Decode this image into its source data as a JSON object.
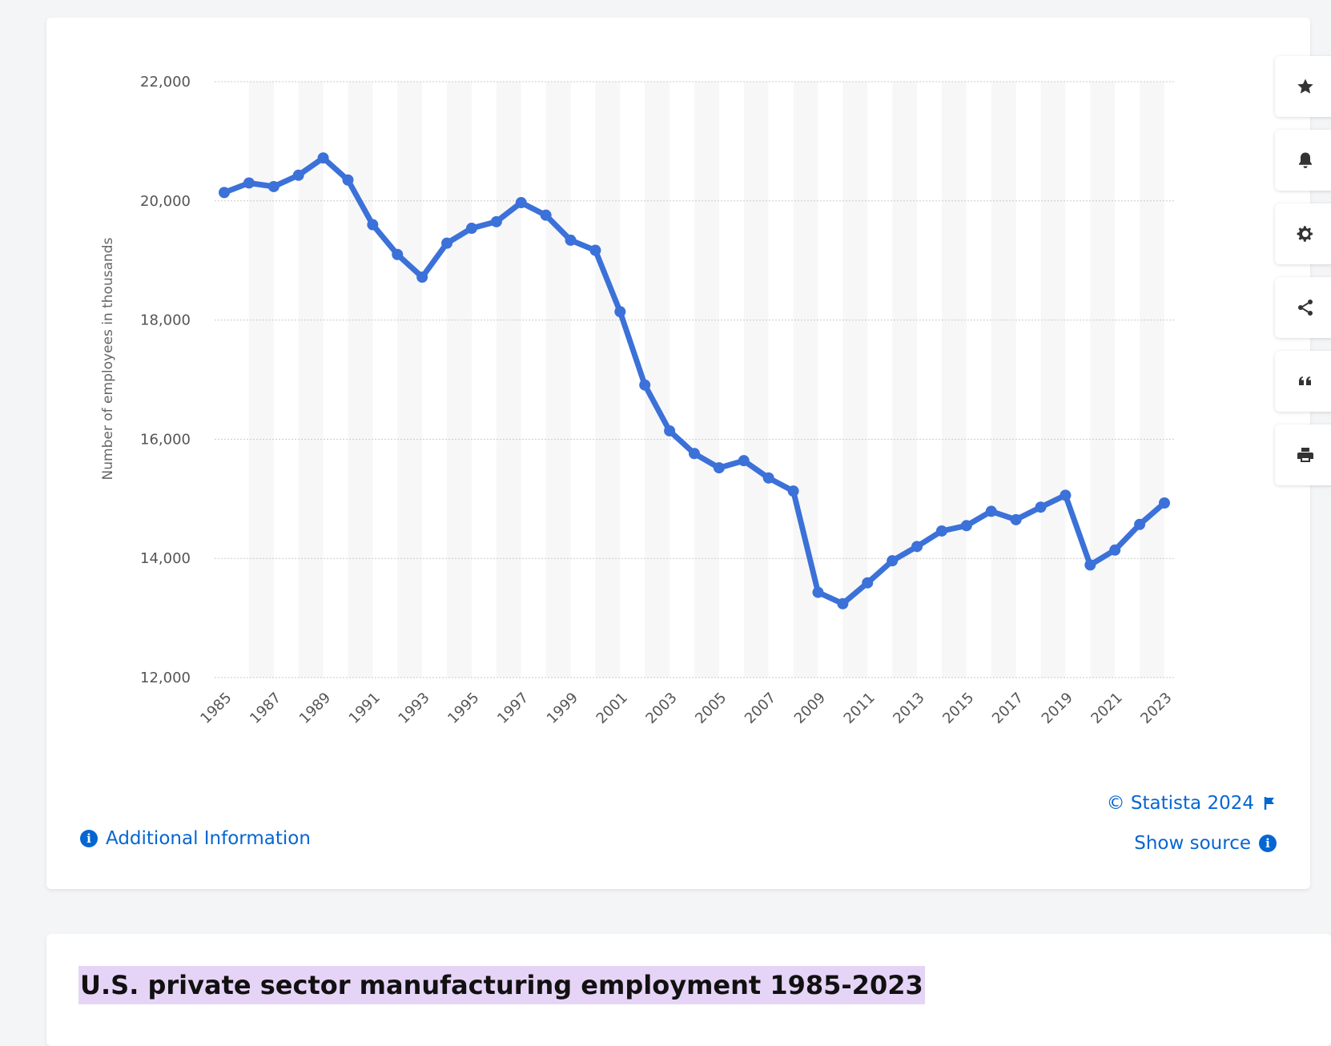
{
  "chart_data": {
    "type": "line",
    "title": "U.S. private sector manufacturing employment 1985-2023",
    "xlabel": "",
    "ylabel": "Number of employees in thousands",
    "ylim": [
      12000,
      22000
    ],
    "yticks": [
      12000,
      14000,
      16000,
      18000,
      20000,
      22000
    ],
    "ytick_labels": [
      "12,000",
      "14,000",
      "16,000",
      "18,000",
      "20,000",
      "22,000"
    ],
    "xtick_labels": [
      "1985",
      "1987",
      "1989",
      "1991",
      "1993",
      "1995",
      "1997",
      "1999",
      "2001",
      "2003",
      "2005",
      "2007",
      "2009",
      "2011",
      "2013",
      "2015",
      "2017",
      "2019",
      "2021",
      "2023"
    ],
    "x": [
      1985,
      1986,
      1987,
      1988,
      1989,
      1990,
      1991,
      1992,
      1993,
      1994,
      1995,
      1996,
      1997,
      1998,
      1999,
      2000,
      2001,
      2002,
      2003,
      2004,
      2005,
      2006,
      2007,
      2008,
      2009,
      2010,
      2011,
      2012,
      2013,
      2014,
      2015,
      2016,
      2017,
      2018,
      2019,
      2020,
      2021,
      2022,
      2023
    ],
    "series": [
      {
        "name": "Employees (thousands)",
        "values": [
          20140,
          20300,
          20240,
          20430,
          20720,
          20350,
          19600,
          19100,
          18720,
          19290,
          19540,
          19650,
          19970,
          19760,
          19340,
          19170,
          18140,
          16910,
          16140,
          15760,
          15520,
          15640,
          15350,
          15130,
          13430,
          13240,
          13590,
          13960,
          14200,
          14460,
          14550,
          14790,
          14650,
          14860,
          15060,
          13890,
          14140,
          14570,
          14930
        ]
      }
    ],
    "grid": true,
    "legend": "none",
    "line_color": "#3b71d8"
  },
  "toolbar": {
    "items": [
      {
        "name": "favorite-button",
        "icon": "star-icon"
      },
      {
        "name": "notification-button",
        "icon": "bell-icon"
      },
      {
        "name": "settings-button",
        "icon": "gear-icon"
      },
      {
        "name": "share-button",
        "icon": "share-icon"
      },
      {
        "name": "cite-button",
        "icon": "quote-icon"
      },
      {
        "name": "print-button",
        "icon": "printer-icon"
      }
    ]
  },
  "footer": {
    "copyright": "© Statista 2024",
    "show_source": "Show source",
    "additional_info": "Additional Information"
  },
  "colors": {
    "accent": "#0666d1",
    "highlight": "#e6d4f7"
  }
}
